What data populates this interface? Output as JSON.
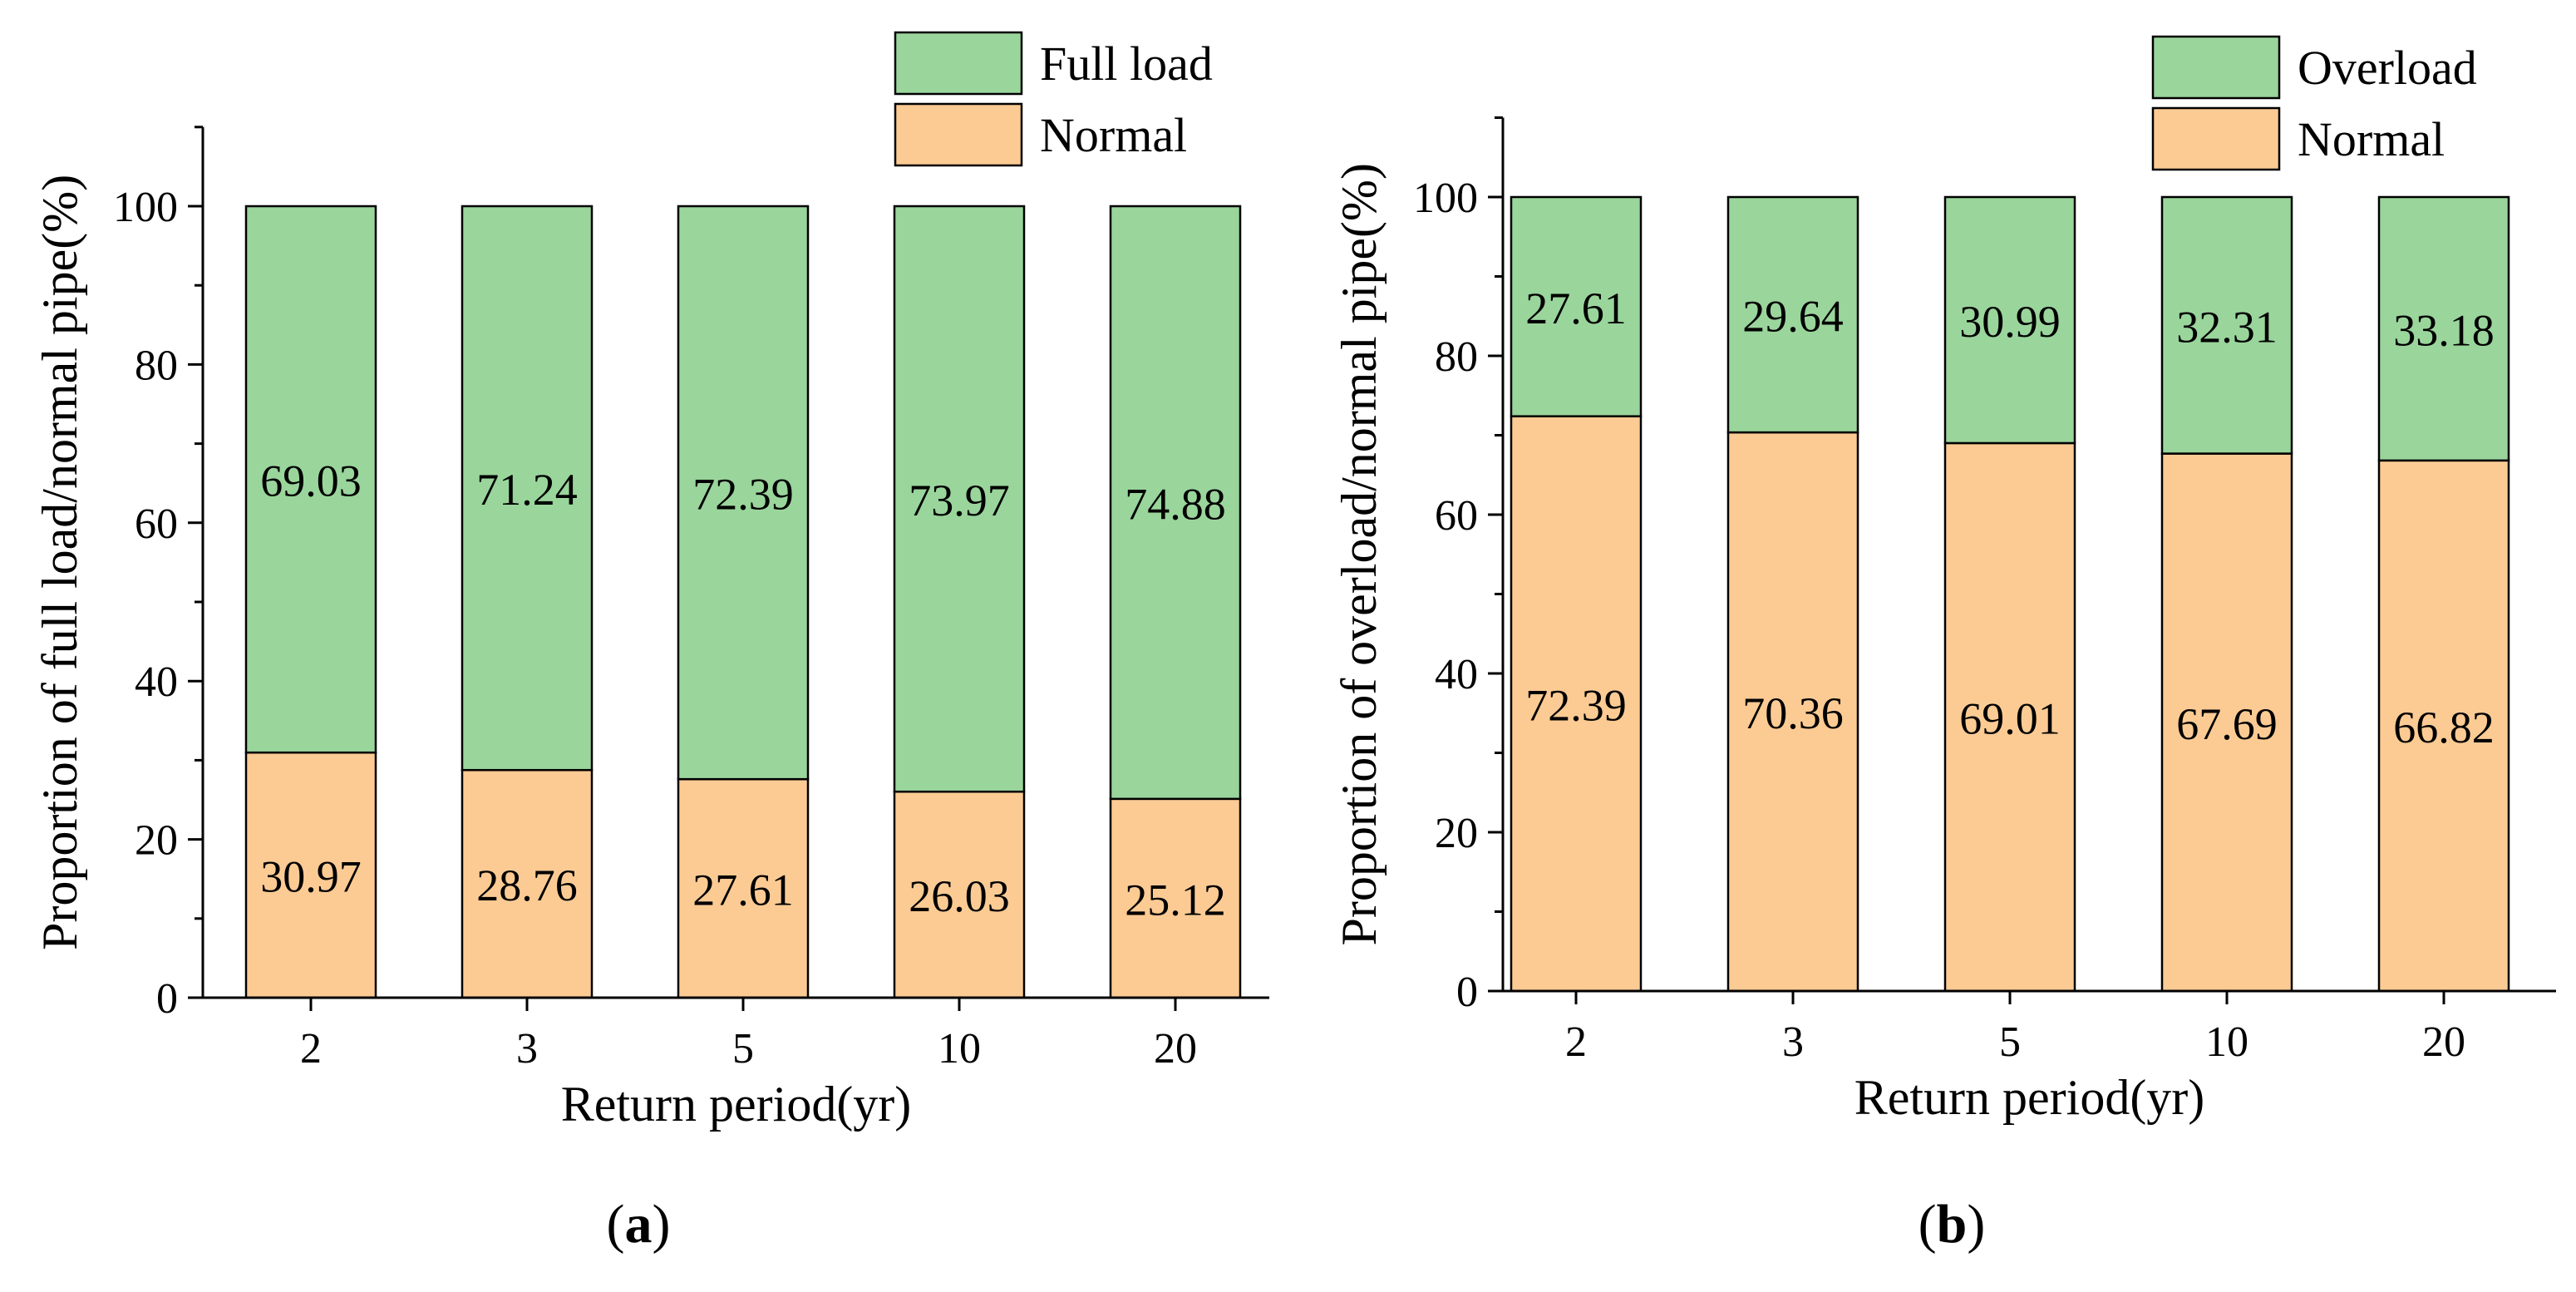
{
  "colors": {
    "normal": "#FCCB94",
    "upper": "#9AD59C",
    "edge": "#000000"
  },
  "chart_data": [
    {
      "type": "bar",
      "stacked": true,
      "panel_label": "a",
      "categories": [
        "2",
        "3",
        "5",
        "10",
        "20"
      ],
      "xlabel": "Return period(yr)",
      "ylabel": "Proportion of full load/normal pipe(%)",
      "ylim": [
        0,
        110
      ],
      "yticks": [
        0,
        20,
        40,
        60,
        80,
        100
      ],
      "legend_position": "top-right",
      "series": [
        {
          "name": "Normal",
          "values": [
            30.97,
            28.76,
            27.61,
            26.03,
            25.12
          ],
          "labels": [
            "30.97",
            "28.76",
            "27.61",
            "26.03",
            "25.12"
          ]
        },
        {
          "name": "Full load",
          "values": [
            69.03,
            71.24,
            72.39,
            73.97,
            74.88
          ],
          "labels": [
            "69.03",
            "71.24",
            "72.39",
            "73.97",
            "74.88"
          ]
        }
      ]
    },
    {
      "type": "bar",
      "stacked": true,
      "panel_label": "b",
      "categories": [
        "2",
        "3",
        "5",
        "10",
        "20"
      ],
      "xlabel": "Return period(yr)",
      "ylabel": "Proportion of overload/normal pipe(%)",
      "ylim": [
        0,
        110
      ],
      "yticks": [
        0,
        20,
        40,
        60,
        80,
        100
      ],
      "legend_position": "top-right",
      "series": [
        {
          "name": "Normal",
          "values": [
            72.39,
            70.36,
            69.01,
            67.69,
            66.82
          ],
          "labels": [
            "72.39",
            "70.36",
            "69.01",
            "67.69",
            "66.82"
          ]
        },
        {
          "name": "Overload",
          "values": [
            27.61,
            29.64,
            30.99,
            32.31,
            33.18
          ],
          "labels": [
            "27.61",
            "29.64",
            "30.99",
            "32.31",
            "33.18"
          ]
        }
      ]
    }
  ]
}
